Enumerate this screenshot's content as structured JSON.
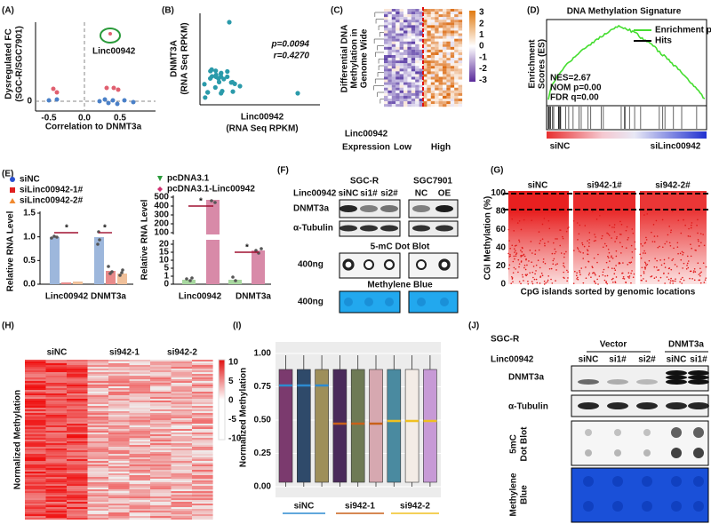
{
  "panel_a": {
    "label": "(A)",
    "y_title": [
      "Dysregulated FC",
      "(SGC-R/SGC7901)"
    ],
    "x_title": "Correlation to DNMT3a",
    "x_ticks": [
      "-0.5",
      "0.0",
      "0.5"
    ],
    "y_ticks": [
      "0"
    ],
    "annotation": "Linc00942"
  },
  "panel_b": {
    "label": "(B)",
    "y_title": [
      "DNMT3A",
      "(RNA Seq RPKM)"
    ],
    "x_title": [
      "Linc00942",
      "(RNA Seq RPKM)"
    ],
    "stats": [
      "p=0.0094",
      "r=0.4270"
    ]
  },
  "panel_c": {
    "label": "(C)",
    "y_title": [
      "Differential DNA",
      "Methylation in",
      "Genome Wide"
    ],
    "colorbar_ticks": [
      "3",
      "2",
      "1",
      "0",
      "-1",
      "-2",
      "-3"
    ],
    "group_title": [
      "Linc00942",
      "Expression"
    ],
    "groups": [
      "Low",
      "High"
    ]
  },
  "panel_d": {
    "label": "(D)",
    "title": "DNA Methylation Signature",
    "y_title": [
      "Enrichment",
      "Scores (ES)"
    ],
    "legend": [
      "Enrichment profile",
      "Hits"
    ],
    "stats": [
      "NES=2.67",
      "NOM p=0.00",
      "FDR q=0.00"
    ],
    "groups": [
      "siNC",
      "siLinc00942"
    ]
  },
  "panel_e": {
    "label": "(E)",
    "left_legend": [
      "siNC",
      "siLinc00942-1#",
      "siLinc00942-2#"
    ],
    "right_legend": [
      "pcDNA3.1",
      "pcDNA3.1-Linc00942"
    ],
    "y_title": "Relative RNA Level",
    "left_y_ticks": [
      "0.0",
      "0.5",
      "1.0",
      "1.5"
    ],
    "right_y_ticks_upper": [
      "100",
      "200",
      "300",
      "400",
      "500"
    ],
    "right_y_ticks_lower": [
      "0",
      "1",
      "5",
      "10",
      "15",
      "20"
    ],
    "categories": [
      "Linc00942",
      "DNMT3a"
    ],
    "significance": "*"
  },
  "panel_f": {
    "label": "(F)",
    "cell_lines": [
      "SGC-R",
      "SGC7901"
    ],
    "row_title": "Linc00942",
    "lanes": [
      "siNC",
      "si1#",
      "si2#",
      "NC",
      "OE"
    ],
    "blots": [
      "DNMT3a",
      "α-Tubulin"
    ],
    "dot_blot_title": "5-mC Dot Blot",
    "amount": "400ng",
    "stain_title": "Methylene Blue"
  },
  "panel_g": {
    "label": "(G)",
    "groups": [
      "siNC",
      "si942-1#",
      "si942-2#"
    ],
    "y_title": "CGI Methylation (%)",
    "y_ticks": [
      "0",
      "20",
      "40",
      "60",
      "80",
      "100"
    ],
    "x_title": "CpG islands sorted by genomic locations"
  },
  "panel_h": {
    "label": "(H)",
    "groups": [
      "siNC",
      "si942-1",
      "si942-2"
    ],
    "y_title": "Normalized Methylation",
    "colorbar_ticks": [
      "10",
      "5",
      "0",
      "-5",
      "-10"
    ]
  },
  "panel_i": {
    "label": "(I)",
    "y_title": "Normalized Methylation",
    "y_ticks": [
      "0.00",
      "0.25",
      "0.50",
      "0.75",
      "1.00"
    ],
    "groups": [
      "siNC",
      "si942-1",
      "si942-2"
    ]
  },
  "panel_j": {
    "label": "(J)",
    "cell_line": "SGC-R",
    "conditions": [
      "Vector",
      "DNMT3a"
    ],
    "row_title": "Linc00942",
    "lanes": [
      "siNC",
      "si1#",
      "si2#",
      "siNC",
      "si1#"
    ],
    "blots": [
      "DNMT3a",
      "α-Tubulin"
    ],
    "dot_blot_title": [
      "5mC",
      "Dot Blot"
    ],
    "stain_title": [
      "Methylene",
      "Blue"
    ]
  }
}
